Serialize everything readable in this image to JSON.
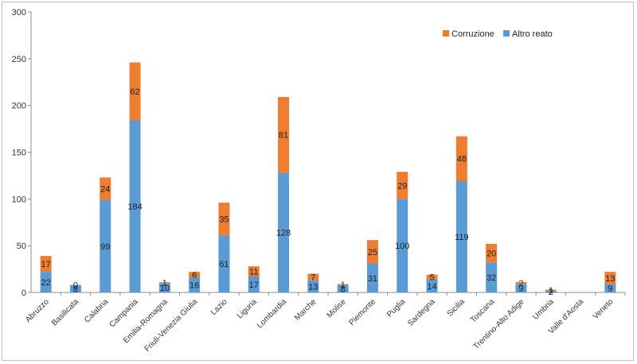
{
  "chart_data": {
    "type": "bar",
    "stacked": true,
    "title": "",
    "xlabel": "",
    "ylabel": "",
    "ylim": [
      0,
      300
    ],
    "yticks": [
      0,
      50,
      100,
      150,
      200,
      250,
      300
    ],
    "grid": false,
    "legend_position": "top-right",
    "categories": [
      "Abruzzo",
      "Basilicata",
      "Calabria",
      "Campania",
      "Emilia-Romagna",
      "Friuli-Venezia Giulia",
      "Lazio",
      "Liguria",
      "Lombardia",
      "Marche",
      "Molise",
      "Piemonte",
      "Puglia",
      "Sardegna",
      "Sicilia",
      "Toscana",
      "Trentino-Alto Adige",
      "Umbria",
      "Valle d'Aosta",
      "Veneto"
    ],
    "series": [
      {
        "name": "Altro reato",
        "color": "#5b9bd5",
        "values": [
          22,
          8,
          99,
          184,
          10,
          16,
          61,
          17,
          128,
          13,
          8,
          31,
          100,
          14,
          119,
          32,
          9,
          2,
          0,
          9
        ],
        "labels": [
          "22",
          "8",
          "99",
          "184",
          "10",
          "16",
          "61",
          "17",
          "128",
          "13",
          "8",
          "31",
          "100",
          "14",
          "119",
          "32",
          "9",
          "2",
          "",
          "9"
        ]
      },
      {
        "name": "Corruzione",
        "color": "#ed7d31",
        "values": [
          17,
          0,
          24,
          62,
          1,
          6,
          35,
          11,
          81,
          7,
          1,
          25,
          29,
          5,
          48,
          20,
          2,
          1,
          0,
          13
        ],
        "labels": [
          "17",
          "0",
          "24",
          "62",
          "1",
          "6",
          "35",
          "11",
          "81",
          "7",
          "1",
          "25",
          "29",
          "5",
          "48",
          "20",
          "2",
          "1",
          "",
          "13"
        ]
      }
    ]
  }
}
